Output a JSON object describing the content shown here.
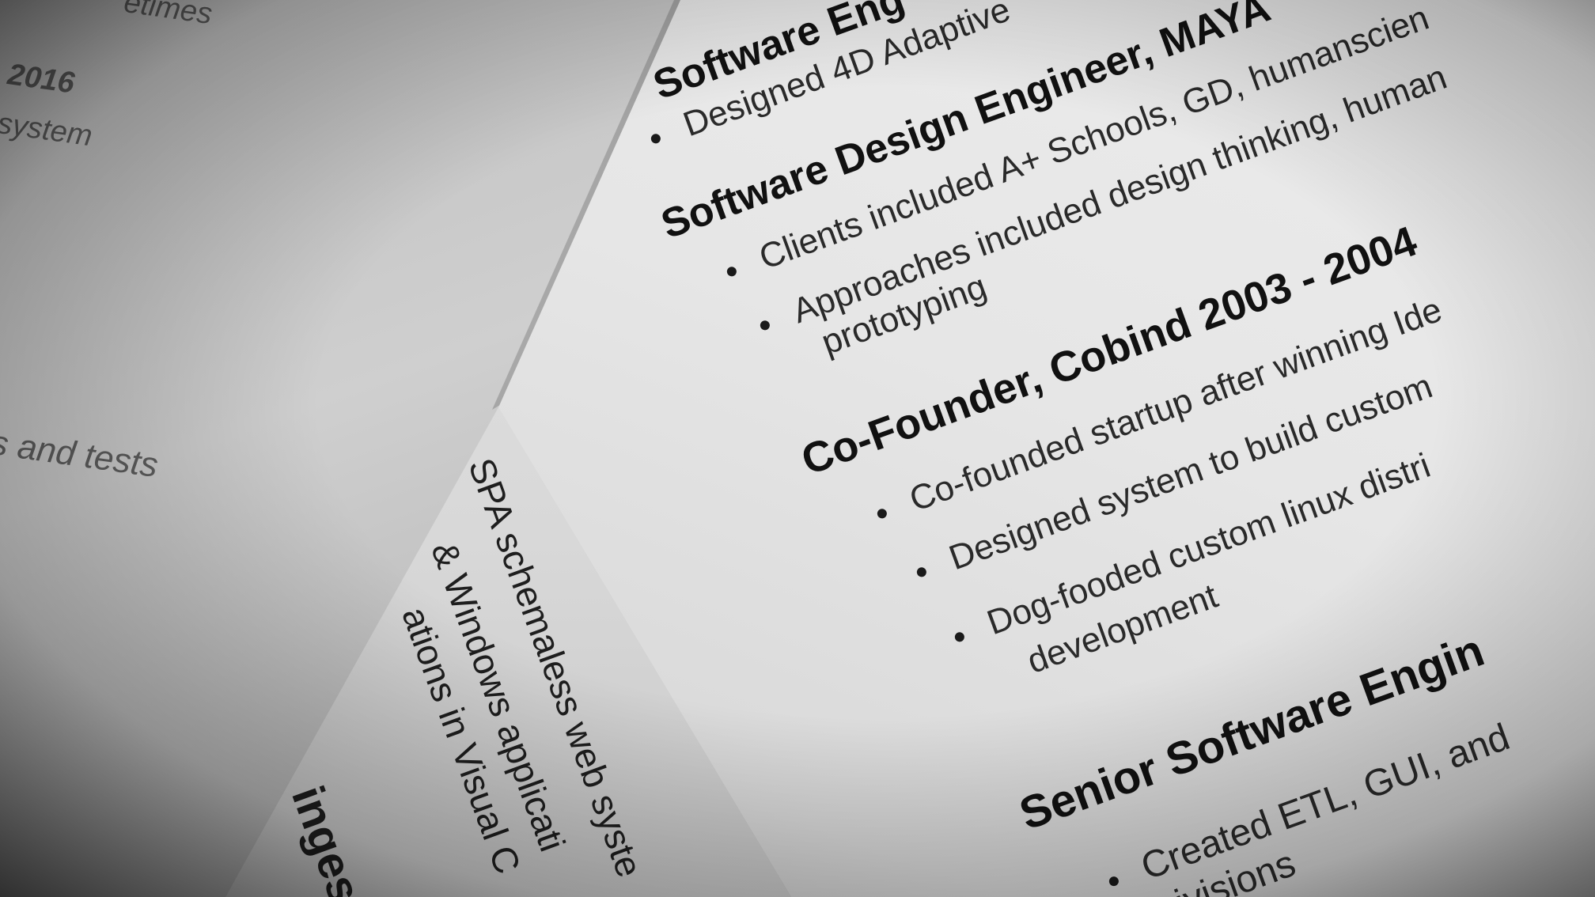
{
  "main_sheet": {
    "partial_heading": "Software Eng",
    "bullet_top": "Designed 4D Adaptive",
    "heading_1": "Software Design Engineer, MAYA",
    "bullets_1": [
      "Clients included A+ Schools, GD, humanscien",
      "Approaches included design thinking, human"
    ],
    "continuation_1": "prototyping",
    "heading_2": "Co-Founder, Cobind 2003 - 2004",
    "bullets_2": [
      "Co-founded startup after winning Ide",
      "Designed system to build custom",
      "Dog-fooded custom linux distri"
    ],
    "continuation_2": "development",
    "heading_3": "Senior Software Engin",
    "bullets_3": [
      "Created ETL, GUI, and"
    ],
    "continuation_3": "ivisions"
  },
  "left_sheet": {
    "lines": [
      "etimes",
      "- 2016",
      "system",
      "s and tests"
    ]
  },
  "lower_sheet": {
    "lines": [
      "SPA schemaless web syste",
      "& Windows applicati",
      "ations in Visual C"
    ],
    "partial_heading": "inges"
  }
}
